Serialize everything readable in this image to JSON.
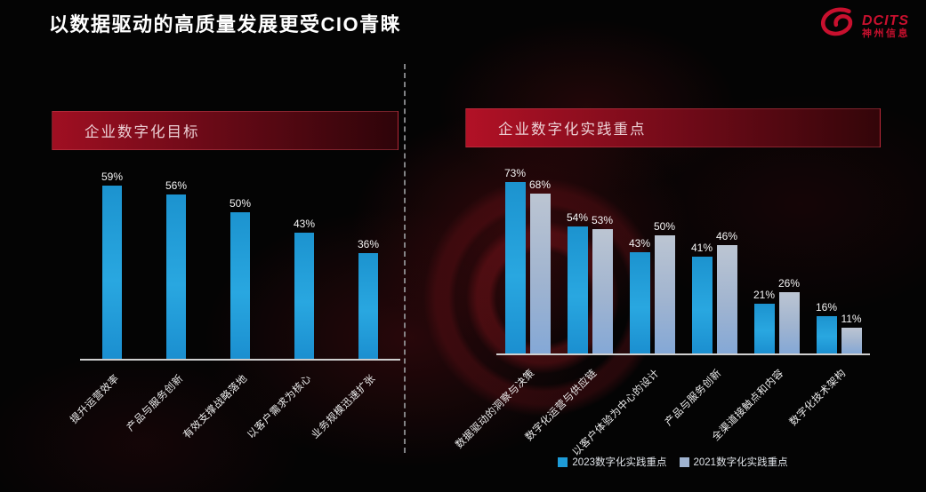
{
  "title": "以数据驱动的高质量发展更受CIO青睐",
  "logo": {
    "brand": "DCITS",
    "subtitle": "神州信息",
    "color": "#c8102e"
  },
  "colors": {
    "background": "#040404",
    "accent_red": "#c8102e",
    "banner_red": "#a00f22",
    "bar_blue_2023": "#1e9cd8",
    "bar_gray_2021": "#9fb3d0",
    "axis": "#cfcfcf",
    "text_light": "#f5f5f5"
  },
  "chart_data": [
    {
      "type": "bar",
      "title": "企业数字化目标",
      "categories": [
        "提升运营效率",
        "产品与服务创新",
        "有效支撑战略落地",
        "以客户需求为核心",
        "业务规模迅速扩张"
      ],
      "values": [
        59,
        56,
        50,
        43,
        36
      ],
      "unit": "%",
      "ylim": [
        0,
        65
      ],
      "xlabel": "",
      "ylabel": "",
      "grid": false,
      "data_labels": true,
      "bar_color": "#1e9cd8"
    },
    {
      "type": "bar",
      "title": "企业数字化实践重点",
      "categories": [
        "数据驱动的洞察与决策",
        "数字化运营与供应链",
        "以客户体验为中心的设计",
        "产品与服务创新",
        "全渠道接触点和内容",
        "数字化技术架构"
      ],
      "series": [
        {
          "name": "2023数字化实践重点",
          "color": "#1e9cd8",
          "values": [
            73,
            54,
            43,
            41,
            21,
            16
          ]
        },
        {
          "name": "2021数字化实践重点",
          "color": "#9fb3d0",
          "values": [
            68,
            53,
            50,
            46,
            26,
            11
          ]
        }
      ],
      "unit": "%",
      "ylim": [
        0,
        80
      ],
      "xlabel": "",
      "ylabel": "",
      "grid": false,
      "data_labels": true,
      "legend_position": "bottom"
    }
  ]
}
